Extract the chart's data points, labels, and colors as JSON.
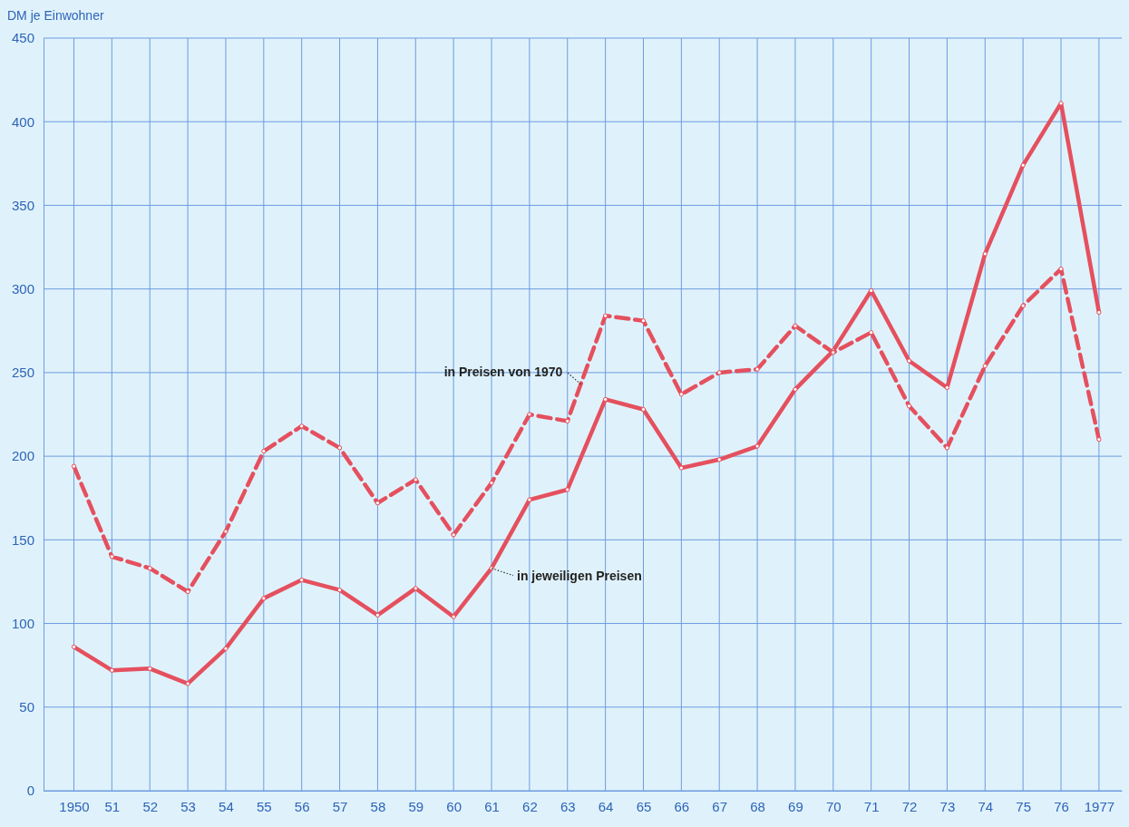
{
  "chart_data": {
    "type": "line",
    "ylabel": "DM je Einwohner",
    "x": [
      1950,
      1951,
      1952,
      1953,
      1954,
      1955,
      1956,
      1957,
      1958,
      1959,
      1960,
      1961,
      1962,
      1963,
      1964,
      1965,
      1966,
      1967,
      1968,
      1969,
      1970,
      1971,
      1972,
      1973,
      1974,
      1975,
      1976,
      1977
    ],
    "xlim": [
      1949.2,
      1977.6
    ],
    "xticks": [
      {
        "value": 1950,
        "label": "1950"
      },
      {
        "value": 1951,
        "label": "51"
      },
      {
        "value": 1952,
        "label": "52"
      },
      {
        "value": 1953,
        "label": "53"
      },
      {
        "value": 1954,
        "label": "54"
      },
      {
        "value": 1955,
        "label": "55"
      },
      {
        "value": 1956,
        "label": "56"
      },
      {
        "value": 1957,
        "label": "57"
      },
      {
        "value": 1958,
        "label": "58"
      },
      {
        "value": 1959,
        "label": "59"
      },
      {
        "value": 1960,
        "label": "60"
      },
      {
        "value": 1961,
        "label": "61"
      },
      {
        "value": 1962,
        "label": "62"
      },
      {
        "value": 1963,
        "label": "63"
      },
      {
        "value": 1964,
        "label": "64"
      },
      {
        "value": 1965,
        "label": "65"
      },
      {
        "value": 1966,
        "label": "66"
      },
      {
        "value": 1967,
        "label": "67"
      },
      {
        "value": 1968,
        "label": "68"
      },
      {
        "value": 1969,
        "label": "69"
      },
      {
        "value": 1970,
        "label": "70"
      },
      {
        "value": 1971,
        "label": "71"
      },
      {
        "value": 1972,
        "label": "72"
      },
      {
        "value": 1973,
        "label": "73"
      },
      {
        "value": 1974,
        "label": "74"
      },
      {
        "value": 1975,
        "label": "75"
      },
      {
        "value": 1976,
        "label": "76"
      },
      {
        "value": 1977,
        "label": "1977"
      }
    ],
    "ylim": [
      0,
      450
    ],
    "yticks": [
      0,
      50,
      100,
      150,
      200,
      250,
      300,
      350,
      400,
      450
    ],
    "grid": true,
    "marker": "circle",
    "series": [
      {
        "name": "in jeweiligen Preisen",
        "color": "#e5505e",
        "line_style": "solid",
        "values": [
          86,
          72,
          73,
          64,
          85,
          115,
          126,
          120,
          105,
          121,
          104,
          133,
          174,
          180,
          234,
          228,
          193,
          198,
          206,
          240,
          263,
          299,
          257,
          241,
          321,
          374,
          411,
          286
        ]
      },
      {
        "name": "in Preisen von 1970",
        "color": "#e5505e",
        "line_style": "dashed",
        "values": [
          194,
          140,
          133,
          119,
          155,
          203,
          218,
          205,
          172,
          186,
          153,
          184,
          225,
          221,
          284,
          281,
          237,
          250,
          252,
          278,
          262,
          274,
          230,
          205,
          254,
          290,
          312,
          210
        ]
      }
    ]
  }
}
